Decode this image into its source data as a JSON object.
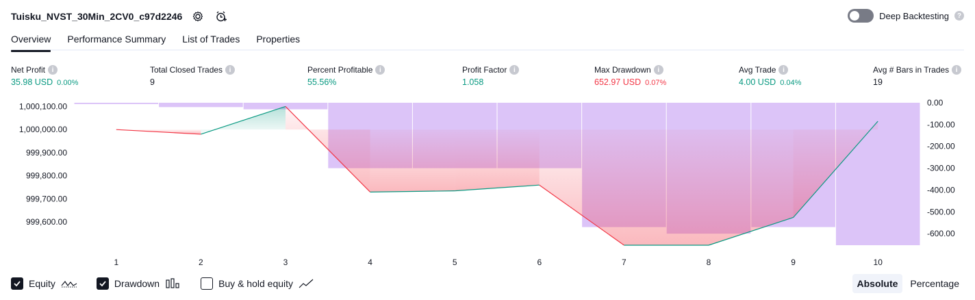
{
  "header": {
    "strategy_name": "Tuisku_NVST_30Min_2CV0_c97d2246"
  },
  "deep_backtesting": {
    "label": "Deep Backtesting",
    "enabled": false
  },
  "tabs": [
    {
      "label": "Overview",
      "active": true
    },
    {
      "label": "Performance Summary",
      "active": false
    },
    {
      "label": "List of Trades",
      "active": false
    },
    {
      "label": "Properties",
      "active": false
    }
  ],
  "metrics": {
    "net_profit": {
      "label": "Net Profit",
      "value": "35.98 USD",
      "pct": "0.00%"
    },
    "total_closed_trades": {
      "label": "Total Closed Trades",
      "value": "9"
    },
    "percent_profitable": {
      "label": "Percent Profitable",
      "value": "55.56%"
    },
    "profit_factor": {
      "label": "Profit Factor",
      "value": "1.058"
    },
    "max_drawdown": {
      "label": "Max Drawdown",
      "value": "652.97 USD",
      "pct": "0.07%"
    },
    "avg_trade": {
      "label": "Avg Trade",
      "value": "4.00 USD",
      "pct": "0.04%"
    },
    "avg_bars": {
      "label": "Avg # Bars in Trades",
      "value": "19"
    }
  },
  "chart_data": {
    "type": "line",
    "x": [
      1,
      2,
      3,
      4,
      5,
      6,
      7,
      8,
      9,
      10
    ],
    "series": [
      {
        "name": "Equity",
        "values": [
          1000000.0,
          999980.0,
          1000100.0,
          999730.0,
          999735.0,
          999760.0,
          999500.0,
          999500.0,
          999620.0,
          1000036.0
        ]
      },
      {
        "name": "Drawdown",
        "values": [
          0,
          -20,
          -30,
          -300,
          -300,
          -300,
          -570,
          -600,
          -570,
          -653
        ]
      }
    ],
    "equity_ticks": [
      "1,000,100.00",
      "1,000,000.00",
      "999,900.00",
      "999,800.00",
      "999,700.00",
      "999,600.00"
    ],
    "equity_tick_values": [
      1000100,
      1000000,
      999900,
      999800,
      999700,
      999600
    ],
    "drawdown_ticks": [
      "0.00",
      "-100.00",
      "-200.00",
      "-300.00",
      "-400.00",
      "-500.00",
      "-600.00"
    ],
    "drawdown_tick_values": [
      0,
      -100,
      -200,
      -300,
      -400,
      -500,
      -600
    ],
    "x_ticks": [
      "1",
      "2",
      "3",
      "4",
      "5",
      "6",
      "7",
      "8",
      "9",
      "10"
    ],
    "equity_ylim": [
      999500,
      1000116
    ],
    "drawdown_ylim": [
      -653,
      0
    ],
    "colors": {
      "up": "#089981",
      "down": "#f23645",
      "drawdown": "#c9a4f5"
    }
  },
  "footer": {
    "equity": {
      "label": "Equity",
      "checked": true
    },
    "drawdown": {
      "label": "Drawdown",
      "checked": true
    },
    "buy_hold": {
      "label": "Buy & hold equity",
      "checked": false
    }
  },
  "mode": {
    "absolute": "Absolute",
    "percentage": "Percentage",
    "selected": "Absolute"
  }
}
